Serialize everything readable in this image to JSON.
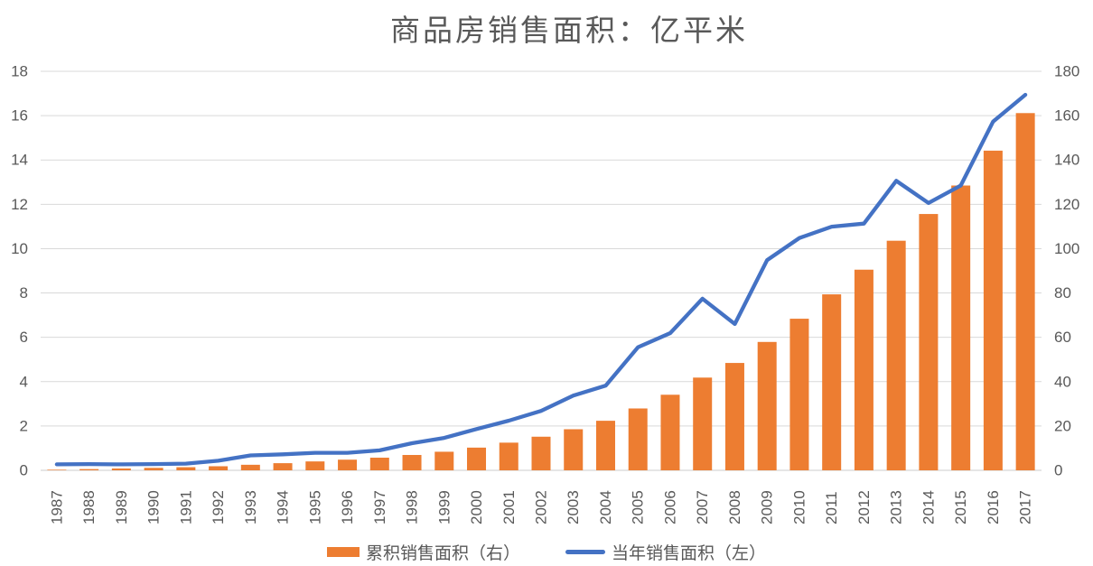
{
  "chart_data": {
    "type": "combo-bar-line",
    "title": "商品房销售面积：亿平米",
    "categories": [
      "1987",
      "1988",
      "1989",
      "1990",
      "1991",
      "1992",
      "1993",
      "1994",
      "1995",
      "1996",
      "1997",
      "1998",
      "1999",
      "2000",
      "2001",
      "2002",
      "2003",
      "2004",
      "2005",
      "2006",
      "2007",
      "2008",
      "2009",
      "2010",
      "2011",
      "2012",
      "2013",
      "2014",
      "2015",
      "2016",
      "2017"
    ],
    "series": [
      {
        "name": "累积销售面积（右）",
        "type": "bar",
        "axis": "right",
        "color": "#ED7D31",
        "values": [
          0.27,
          0.55,
          0.82,
          1.1,
          1.4,
          1.83,
          2.5,
          3.22,
          4.01,
          4.8,
          5.7,
          6.92,
          8.38,
          10.24,
          12.48,
          15.16,
          18.53,
          22.35,
          27.9,
          34.09,
          41.83,
          48.43,
          57.91,
          68.39,
          79.38,
          90.51,
          103.57,
          115.63,
          128.48,
          144.21,
          161.15
        ]
      },
      {
        "name": "当年销售面积（左）",
        "type": "line",
        "axis": "left",
        "color": "#4472C4",
        "values": [
          0.27,
          0.28,
          0.27,
          0.28,
          0.3,
          0.43,
          0.67,
          0.72,
          0.79,
          0.79,
          0.9,
          1.22,
          1.46,
          1.86,
          2.24,
          2.68,
          3.37,
          3.82,
          5.55,
          6.19,
          7.74,
          6.6,
          9.48,
          10.48,
          10.99,
          11.13,
          13.06,
          12.06,
          12.85,
          15.73,
          16.94
        ]
      }
    ],
    "left_axis": {
      "min": 0,
      "max": 18,
      "ticks": [
        "0",
        "2",
        "4",
        "6",
        "8",
        "10",
        "12",
        "14",
        "16",
        "18"
      ]
    },
    "right_axis": {
      "min": 0,
      "max": 180,
      "ticks": [
        "0",
        "20",
        "40",
        "60",
        "80",
        "100",
        "120",
        "140",
        "160",
        "180"
      ]
    },
    "grid": true,
    "legend_position": "bottom",
    "colors": {
      "grid_line": "#D9D9D9",
      "axis_base_line": "#CDCDCD",
      "tick_text": "#595959",
      "title_text": "#595959",
      "background": "#FFFFFF"
    }
  }
}
